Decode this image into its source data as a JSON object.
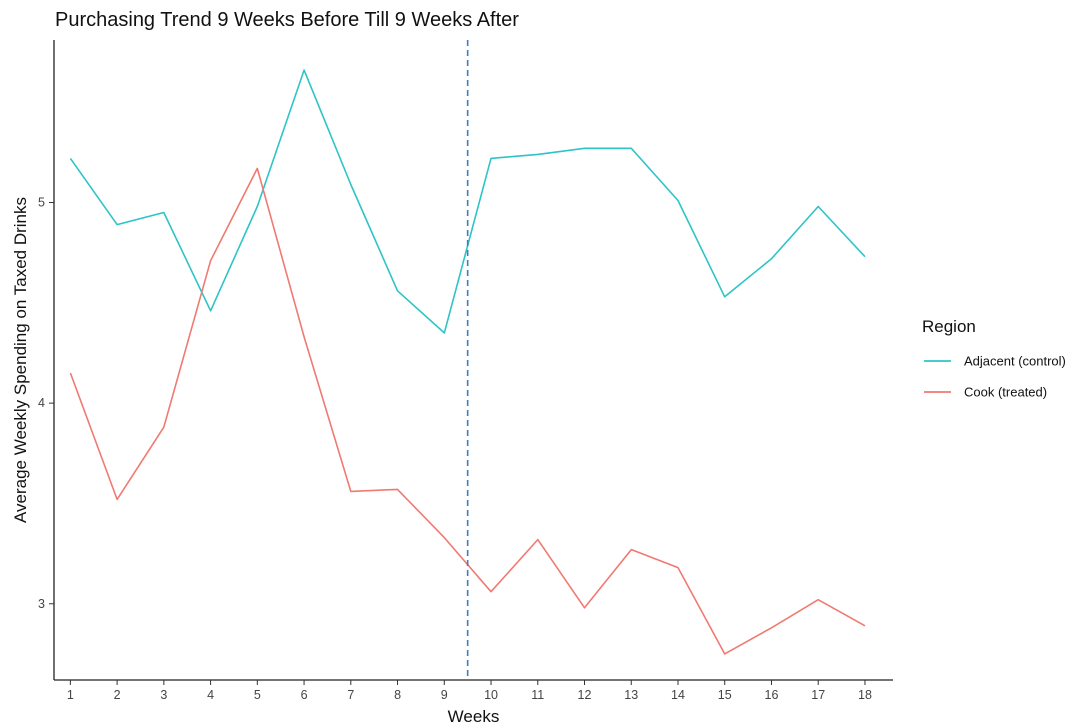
{
  "chart_data": {
    "type": "line",
    "title": "Purchasing Trend 9 Weeks Before Till 9 Weeks After",
    "xlabel": "Weeks",
    "ylabel": "Average Weekly Spending on Taxed Drinks",
    "x": [
      1,
      2,
      3,
      4,
      5,
      6,
      7,
      8,
      9,
      10,
      11,
      12,
      13,
      14,
      15,
      16,
      17,
      18
    ],
    "x_ticks": [
      "1",
      "2",
      "3",
      "4",
      "5",
      "6",
      "7",
      "8",
      "9",
      "10",
      "11",
      "12",
      "13",
      "14",
      "15",
      "16",
      "17",
      "18"
    ],
    "y_ticks": [
      "3",
      "4",
      "5"
    ],
    "xlim": [
      0.65,
      18.6
    ],
    "ylim": [
      2.62,
      5.81
    ],
    "reference_line": {
      "x": 9.5,
      "style": "dashed",
      "color": "#3a7fc1"
    },
    "legend": {
      "title": "Region",
      "position": "right"
    },
    "grid": false,
    "series": [
      {
        "name": "Adjacent (control)",
        "color": "#2ec4c6",
        "values": [
          5.22,
          4.89,
          4.95,
          4.46,
          4.98,
          5.66,
          5.09,
          4.56,
          4.35,
          5.22,
          5.24,
          5.27,
          5.27,
          5.01,
          4.53,
          4.72,
          4.98,
          4.73
        ]
      },
      {
        "name": "Cook (treated)",
        "color": "#f07a72",
        "values": [
          4.15,
          3.52,
          3.88,
          4.71,
          5.17,
          4.33,
          3.56,
          3.57,
          3.33,
          3.06,
          3.32,
          2.98,
          3.27,
          3.18,
          2.75,
          2.88,
          3.02,
          2.89
        ]
      }
    ]
  }
}
